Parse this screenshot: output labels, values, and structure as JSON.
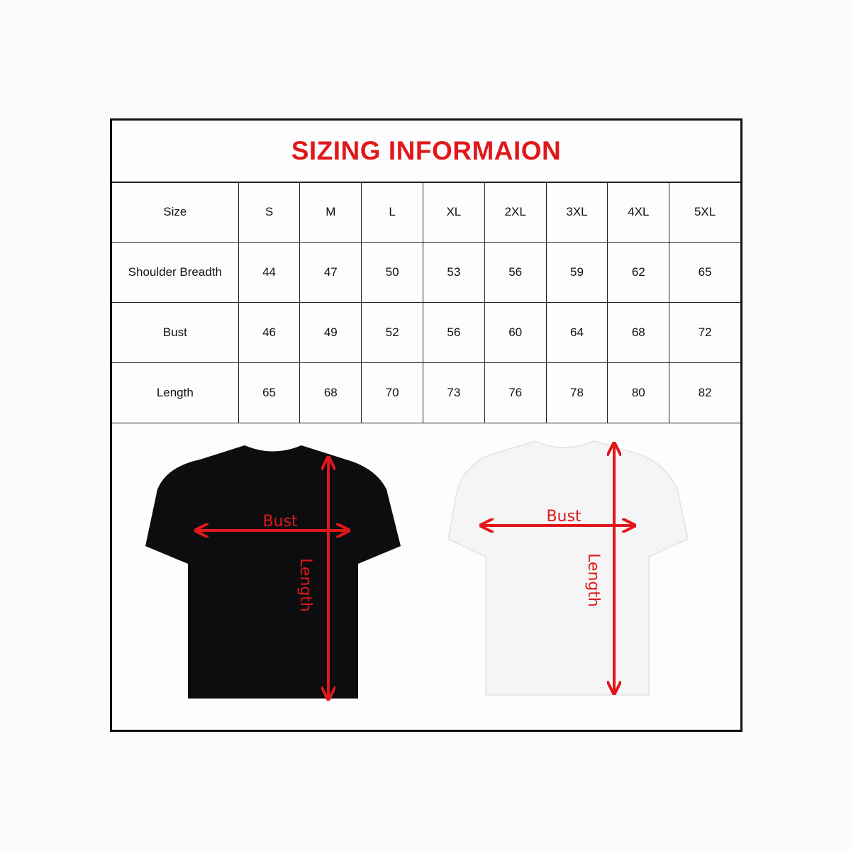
{
  "title": "SIZING INFORMAION",
  "table": {
    "header": {
      "label": "Size",
      "sizes": [
        "S",
        "M",
        "L",
        "XL",
        "2XL",
        "3XL",
        "4XL",
        "5XL"
      ]
    },
    "rows": [
      {
        "label": "Shoulder Breadth",
        "values": [
          "44",
          "47",
          "50",
          "53",
          "56",
          "59",
          "62",
          "65"
        ]
      },
      {
        "label": "Bust",
        "values": [
          "46",
          "49",
          "52",
          "56",
          "60",
          "64",
          "68",
          "72"
        ]
      },
      {
        "label": "Length",
        "values": [
          "65",
          "68",
          "70",
          "73",
          "76",
          "78",
          "80",
          "82"
        ]
      }
    ]
  },
  "diagrams": {
    "black_tee": {
      "bust_label": "Bust",
      "length_label": "Length",
      "color": "#0d0d0f"
    },
    "white_tee": {
      "bust_label": "Bust",
      "length_label": "Length",
      "color": "#f4f4f4"
    },
    "arrow_color": "#e0181b",
    "title_color": "#e0181b"
  }
}
